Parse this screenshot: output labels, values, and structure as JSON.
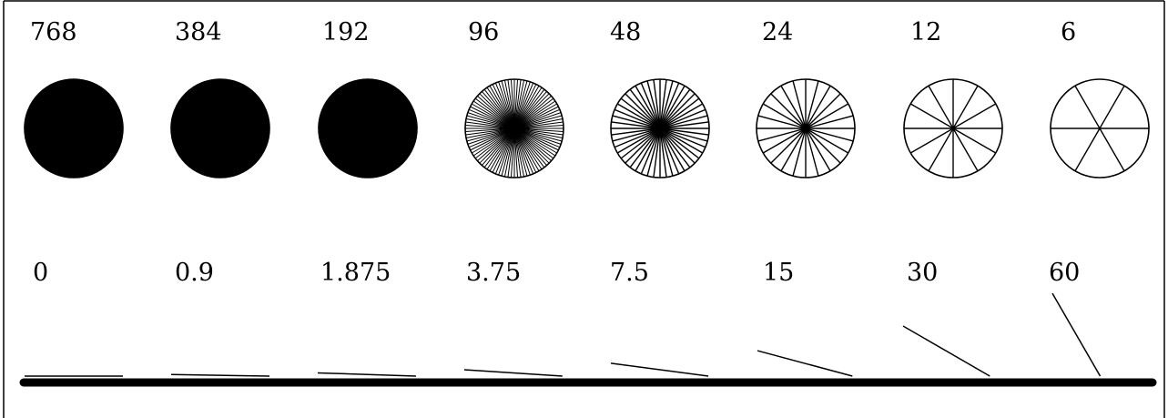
{
  "spoke_counts": [
    {
      "label": "768",
      "spokes": 768
    },
    {
      "label": "384",
      "spokes": 384
    },
    {
      "label": "192",
      "spokes": 192
    },
    {
      "label": "96",
      "spokes": 96
    },
    {
      "label": "48",
      "spokes": 48
    },
    {
      "label": "24",
      "spokes": 24
    },
    {
      "label": "12",
      "spokes": 12
    },
    {
      "label": "6",
      "spokes": 6
    }
  ],
  "angles": [
    {
      "label": "0",
      "degrees": 0
    },
    {
      "label": "0.9",
      "degrees": 0.9
    },
    {
      "label": "1.875",
      "degrees": 1.875
    },
    {
      "label": "3.75",
      "degrees": 3.75
    },
    {
      "label": "7.5",
      "degrees": 7.5
    },
    {
      "label": "15",
      "degrees": 15
    },
    {
      "label": "30",
      "degrees": 30
    },
    {
      "label": "60",
      "degrees": 60
    }
  ]
}
